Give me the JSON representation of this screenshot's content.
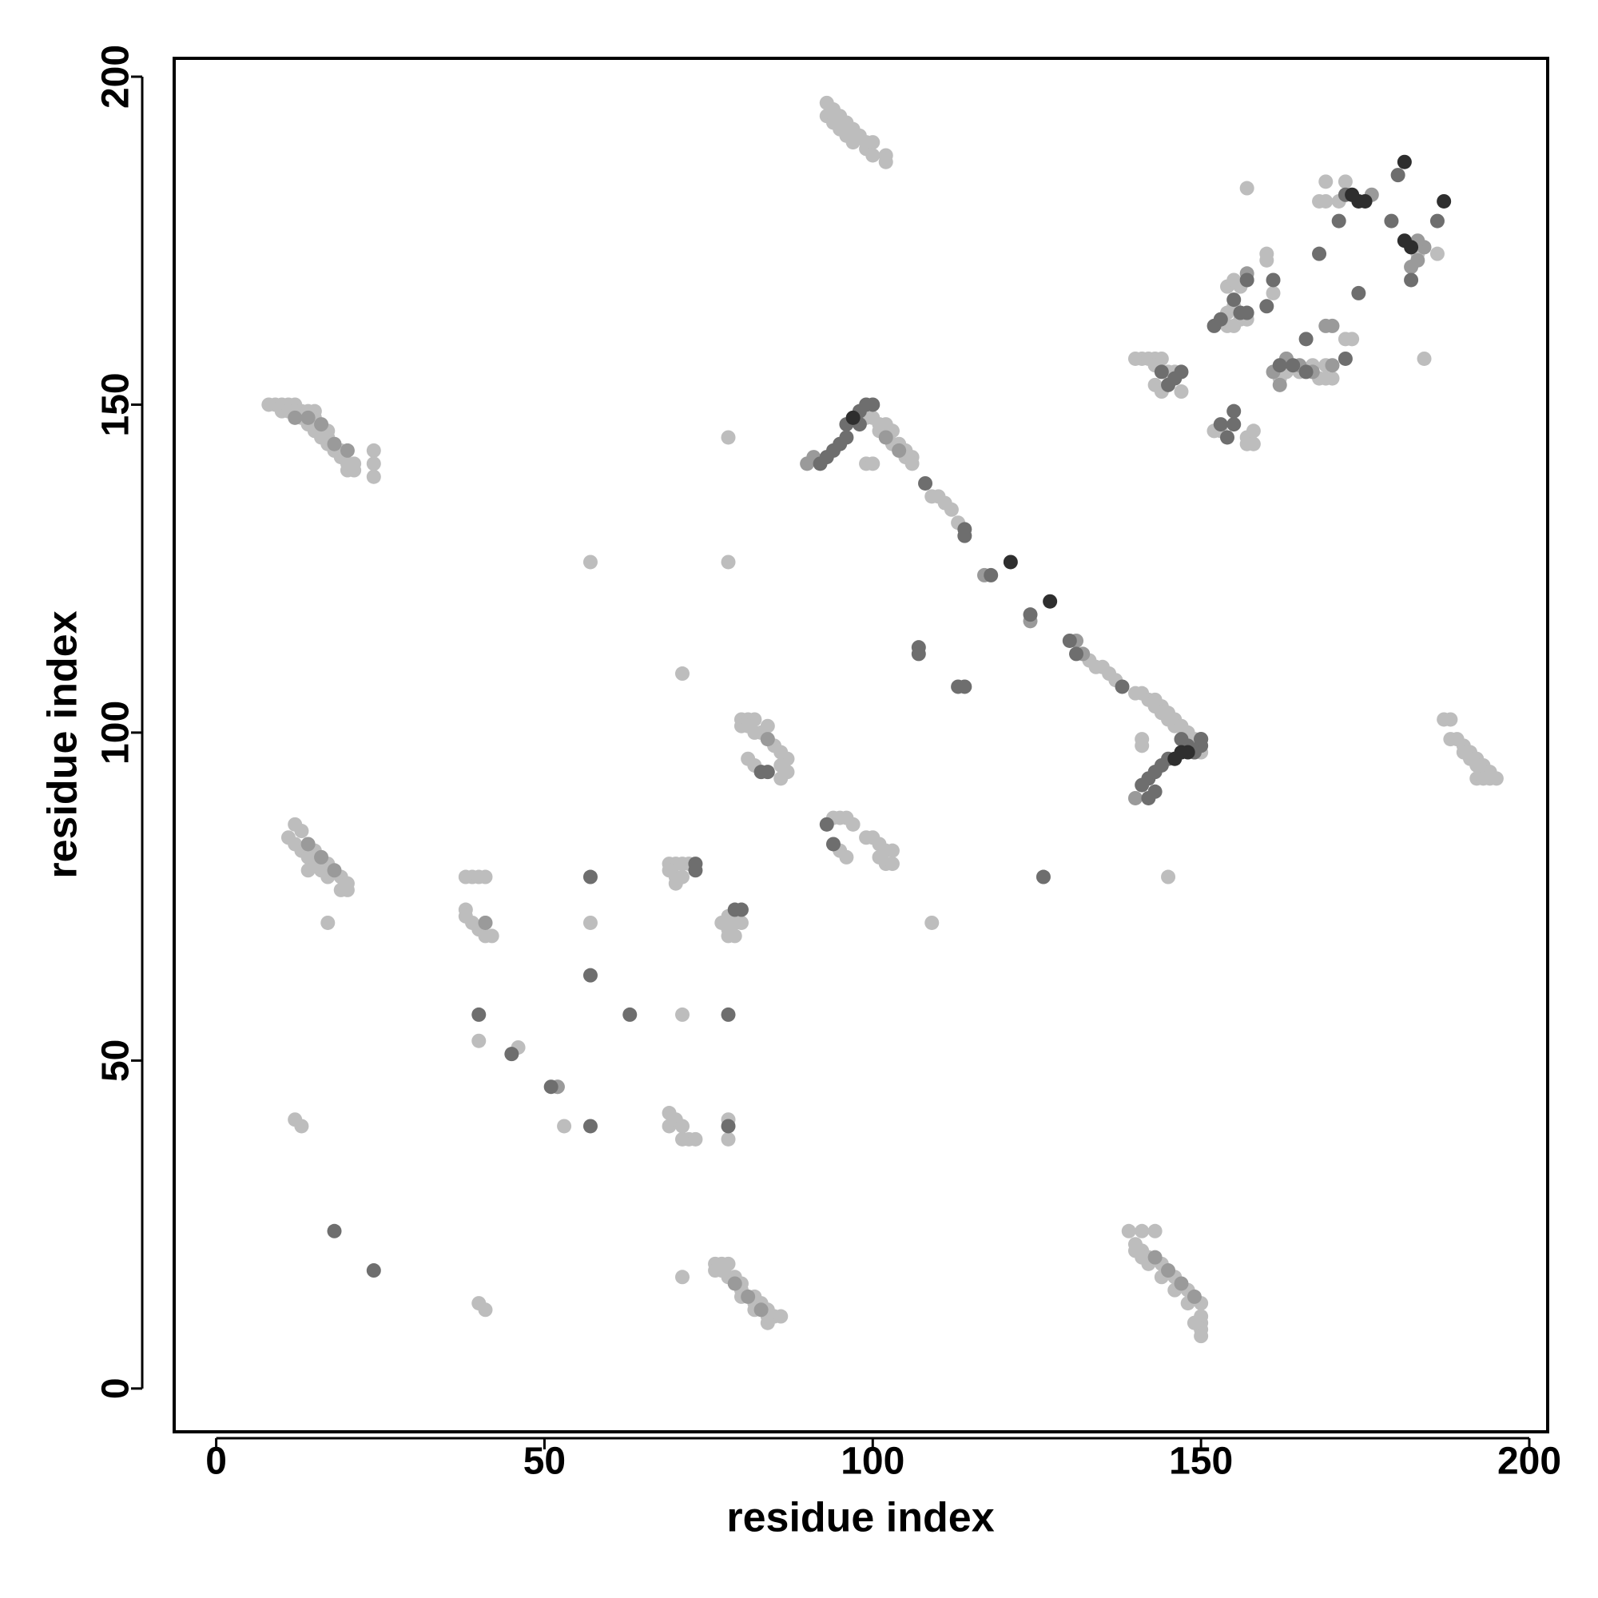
{
  "chart_data": {
    "type": "scatter",
    "x_label": "residue index",
    "y_label": "residue index",
    "xlim": [
      -6.4,
      202.8
    ],
    "ylim": [
      -6.6,
      202.8
    ],
    "xticks": [
      0,
      50,
      100,
      150,
      200
    ],
    "yticks": [
      0,
      50,
      100,
      150,
      200
    ],
    "grid": false,
    "series": [
      {
        "color": "#bdbdbd",
        "x": [
          8,
          9,
          10,
          11,
          12,
          10,
          11,
          12,
          13,
          14,
          15,
          13,
          15,
          14,
          15,
          16,
          17,
          16,
          17,
          17,
          18,
          19,
          19,
          20,
          21,
          20,
          21,
          24,
          24,
          24,
          11,
          12,
          13,
          12,
          13,
          14,
          15,
          15,
          16,
          17,
          17,
          19,
          19,
          20,
          20,
          14,
          17,
          80,
          81,
          82,
          80,
          81,
          82,
          83,
          84,
          84,
          85,
          81,
          82,
          86,
          87,
          86,
          87,
          86,
          94,
          95,
          96,
          97,
          99,
          100,
          101,
          102,
          103,
          101,
          102,
          103,
          95,
          96,
          38,
          39,
          40,
          41,
          38,
          38,
          39,
          40,
          41,
          41,
          42,
          69,
          70,
          71,
          72,
          69,
          70,
          71,
          70,
          77,
          78,
          78,
          79,
          80,
          79,
          78,
          57,
          78,
          71,
          78,
          57,
          40,
          46,
          52,
          53,
          69,
          69,
          70,
          71,
          71,
          72,
          73,
          78,
          78,
          71,
          12,
          13,
          40,
          41,
          71,
          109,
          145,
          76,
          77,
          78,
          76,
          77,
          78,
          79,
          80,
          80,
          82,
          82,
          83,
          84,
          84,
          85,
          86,
          80,
          82,
          84,
          139,
          141,
          143,
          140,
          141,
          142,
          142,
          144,
          144,
          146,
          146,
          148,
          148,
          150,
          150,
          150,
          150,
          150,
          149,
          141,
          140,
          187,
          188,
          188,
          189,
          190,
          190,
          191,
          191,
          192,
          192,
          193,
          193,
          194,
          194,
          195,
          192,
          193,
          93,
          94,
          93,
          94,
          95,
          95,
          96,
          96,
          97,
          97,
          98,
          99,
          99,
          100,
          100,
          102,
          102,
          99,
          100,
          101,
          101,
          102,
          103,
          103,
          104,
          105,
          105,
          106,
          106,
          99,
          100,
          109,
          110,
          111,
          112,
          113,
          135,
          136,
          137,
          133,
          134,
          140,
          141,
          142,
          143,
          143,
          144,
          144,
          145,
          145,
          146,
          146,
          147,
          148,
          149,
          149,
          150,
          141,
          141,
          140,
          141,
          142,
          143,
          144,
          143,
          145,
          146,
          143,
          144,
          147,
          152,
          153,
          157,
          157,
          158,
          158,
          152,
          154,
          155,
          156,
          157,
          154,
          155,
          154,
          155,
          156,
          157,
          160,
          160,
          161,
          162,
          163,
          163,
          165,
          167,
          168,
          169,
          169,
          170,
          172,
          173,
          184,
          169,
          172,
          168,
          169,
          171,
          183,
          186,
          157
        ],
        "values": [
          150,
          150,
          150,
          150,
          150,
          149,
          149,
          149,
          149,
          149,
          149,
          148,
          148,
          147,
          146,
          146,
          146,
          145,
          145,
          144,
          143,
          143,
          142,
          141,
          141,
          140,
          140,
          143,
          141,
          139,
          84,
          86,
          85,
          83,
          82,
          81,
          80,
          82,
          79,
          80,
          78,
          78,
          76,
          77,
          76,
          79,
          71,
          102,
          102,
          102,
          101,
          101,
          100,
          100,
          101,
          99,
          98,
          96,
          95,
          97,
          96,
          95,
          94,
          93,
          87,
          87,
          87,
          86,
          84,
          84,
          83,
          82,
          82,
          81,
          80,
          80,
          82,
          81,
          78,
          78,
          78,
          78,
          73,
          72,
          71,
          70,
          71,
          69,
          69,
          80,
          80,
          80,
          80,
          79,
          78,
          78,
          77,
          71,
          70,
          72,
          71,
          71,
          69,
          69,
          126,
          126,
          109,
          145,
          71,
          53,
          52,
          46,
          40,
          42,
          40,
          41,
          40,
          38,
          38,
          38,
          41,
          38,
          57,
          41,
          40,
          13,
          12,
          17,
          71,
          78,
          19,
          19,
          19,
          18,
          18,
          17,
          17,
          16,
          15,
          13,
          14,
          13,
          12,
          11,
          11,
          11,
          14,
          12,
          10,
          24,
          24,
          24,
          21,
          21,
          20,
          19,
          19,
          17,
          17,
          15,
          15,
          13,
          13,
          11,
          10,
          9,
          8,
          10,
          20,
          22,
          102,
          102,
          99,
          99,
          98,
          97,
          97,
          96,
          96,
          95,
          95,
          94,
          94,
          93,
          93,
          93,
          93,
          196,
          195,
          194,
          193,
          194,
          192,
          193,
          191,
          192,
          190,
          191,
          190,
          189,
          190,
          188,
          188,
          187,
          148,
          148,
          147,
          146,
          147,
          146,
          144,
          144,
          143,
          142,
          142,
          141,
          141,
          141,
          136,
          136,
          135,
          134,
          132,
          110,
          109,
          108,
          111,
          110,
          106,
          106,
          105,
          105,
          104,
          104,
          103,
          103,
          102,
          102,
          101,
          101,
          100,
          99,
          97,
          97,
          99,
          98,
          157,
          157,
          157,
          157,
          157,
          156,
          155,
          155,
          153,
          152,
          152,
          146,
          146,
          145,
          144,
          146,
          144,
          146,
          162,
          162,
          163,
          163,
          164,
          165,
          168,
          169,
          168,
          169,
          172,
          173,
          167,
          154,
          155,
          157,
          155,
          156,
          154,
          154,
          156,
          154,
          160,
          160,
          157,
          184,
          184,
          181,
          181,
          181,
          173,
          173,
          183
        ]
      },
      {
        "color": "#9a9a9a",
        "x": [
          12,
          14,
          16,
          18,
          20,
          14,
          16,
          18,
          143,
          145,
          147,
          149,
          79,
          81,
          83,
          140,
          90,
          91,
          102,
          104,
          131,
          132,
          117,
          124,
          170,
          169,
          170,
          183,
          184,
          157,
          161,
          162,
          163,
          165,
          167,
          176,
          182,
          183,
          84,
          41,
          52
        ],
        "values": [
          148,
          148,
          147,
          144,
          143,
          83,
          81,
          79,
          20,
          18,
          16,
          14,
          16,
          14,
          12,
          90,
          141,
          142,
          145,
          143,
          114,
          112,
          124,
          117,
          162,
          162,
          156,
          172,
          174,
          170,
          155,
          153,
          157,
          156,
          155,
          182,
          171,
          175,
          99,
          71,
          46
        ]
      },
      {
        "color": "#6e6e6e",
        "x": [
          57,
          63,
          40,
          45,
          51,
          57,
          78,
          18,
          24,
          107,
          107,
          113,
          114,
          126,
          57,
          78,
          73,
          73,
          79,
          80,
          94,
          93,
          83,
          84,
          108,
          114,
          114,
          118,
          124,
          130,
          131,
          138,
          154,
          155,
          155,
          153,
          147,
          146,
          145,
          144,
          157,
          157,
          160,
          161,
          156,
          155,
          166,
          168,
          164,
          162,
          166,
          172,
          174,
          171,
          179,
          180,
          182,
          186,
          153,
          152,
          141,
          142,
          143,
          144,
          145,
          142,
          143,
          150,
          150,
          172,
          92,
          93,
          94,
          95,
          96,
          98,
          98,
          99,
          100,
          96,
          147,
          148,
          149,
          150
        ],
        "values": [
          63,
          57,
          57,
          51,
          46,
          40,
          57,
          24,
          18,
          113,
          112,
          107,
          107,
          78,
          78,
          40,
          80,
          79,
          73,
          73,
          83,
          86,
          94,
          94,
          138,
          131,
          130,
          124,
          118,
          114,
          112,
          107,
          145,
          149,
          147,
          147,
          155,
          154,
          153,
          155,
          169,
          164,
          165,
          169,
          164,
          166,
          155,
          173,
          156,
          156,
          160,
          157,
          167,
          178,
          178,
          185,
          169,
          178,
          163,
          162,
          92,
          93,
          94,
          95,
          96,
          90,
          91,
          98,
          99,
          182,
          141,
          142,
          143,
          144,
          145,
          147,
          149,
          150,
          150,
          147,
          99,
          98,
          97,
          99
        ]
      },
      {
        "color": "#2e2e2e",
        "x": [
          97,
          121,
          127,
          181,
          187,
          181,
          182,
          174,
          175,
          147,
          148,
          146,
          173
        ],
        "values": [
          148,
          126,
          120,
          187,
          181,
          175,
          174,
          181,
          181,
          97,
          97,
          96,
          182
        ]
      }
    ]
  }
}
